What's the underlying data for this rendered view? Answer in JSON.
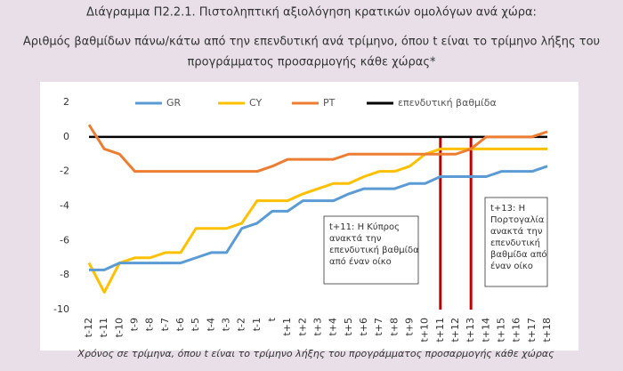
{
  "chart_data": {
    "type": "line",
    "title": "Διάγραμμα Π2.2.1. Πιστοληπτική αξιολόγηση κρατικών ομολόγων ανά χώρα:",
    "subtitle": [
      "Αριθμός βαθμίδων πάνω/κάτω από την επενδυτική ανά τρίμηνο, όπου t είναι το τρίμηνο λήξης του",
      "προγράμματος προσαρμογής κάθε χώρας*"
    ],
    "x_label": "Χρόνος σε τρίμηνα, όπου t είναι το τρίμηνο λήξης του προγράμματος προσαρμογής κάθε χώρας",
    "categories": [
      "t-12",
      "t-11",
      "t-10",
      "t-9",
      "t-8",
      "t-7",
      "t-6",
      "t-5",
      "t-4",
      "t-3",
      "t-2",
      "t-1",
      "t",
      "t+1",
      "t+2",
      "t+3",
      "t+4",
      "t+5",
      "t+6",
      "t+7",
      "t+8",
      "t+9",
      "t+10",
      "t+11",
      "t+12",
      "t+13",
      "t+14",
      "t+15",
      "t+16",
      "t+17",
      "t+18"
    ],
    "series": [
      {
        "name": "GR",
        "color": "#5b9bd5",
        "values": [
          -7.7,
          -7.7,
          -7.3,
          -7.3,
          -7.3,
          -7.3,
          -7.3,
          -7,
          -6.7,
          -6.7,
          -5.3,
          -5,
          -4.3,
          -4.3,
          -3.7,
          -3.7,
          -3.7,
          -3.3,
          -3,
          -3,
          -3,
          -2.7,
          -2.7,
          -2.3,
          -2.3,
          -2.3,
          -2.3,
          -2,
          -2,
          -2,
          -1.7
        ]
      },
      {
        "name": "CY",
        "color": "#ffc000",
        "values": [
          -7.3,
          -9,
          -7.3,
          -7,
          -7,
          -6.7,
          -6.7,
          -5.3,
          -5.3,
          -5.3,
          -5,
          -3.7,
          -3.7,
          -3.7,
          -3.3,
          -3,
          -2.7,
          -2.7,
          -2.3,
          -2,
          -2,
          -1.7,
          -1,
          -0.7,
          -0.7,
          -0.7,
          -0.7,
          -0.7,
          -0.7,
          -0.7,
          -0.7
        ]
      },
      {
        "name": "PT",
        "color": "#ed7d31",
        "values": [
          0.7,
          -0.7,
          -1,
          -2,
          -2,
          -2,
          -2,
          -2,
          -2,
          -2,
          -2,
          -2,
          -1.7,
          -1.3,
          -1.3,
          -1.3,
          -1.3,
          -1,
          -1,
          -1,
          -1,
          -1,
          -1,
          -1,
          -1,
          -0.7,
          0,
          0,
          0,
          0,
          0.3
        ]
      },
      {
        "name": "επενδυτική βαθμίδα",
        "color": "#000000",
        "values": [
          0,
          0,
          0,
          0,
          0,
          0,
          0,
          0,
          0,
          0,
          0,
          0,
          0,
          0,
          0,
          0,
          0,
          0,
          0,
          0,
          0,
          0,
          0,
          0,
          0,
          0,
          0,
          0,
          0,
          0,
          0
        ]
      }
    ],
    "ylim": [
      -10,
      2
    ],
    "yticks": [
      2,
      0,
      -2,
      -4,
      -6,
      -8,
      -10
    ],
    "grid": false,
    "legend": "top",
    "annotations": [
      {
        "x": "t+11",
        "color": "#c00000",
        "lines": [
          "t+11: Η Κύπρος",
          "ανακτά την",
          "επενδυτική βαθμίδα",
          "από έναν οίκο"
        ]
      },
      {
        "x": "t+13",
        "color": "#c00000",
        "lines": [
          "t+13: Η",
          "Πορτογαλία",
          "ανακτά την",
          "επενδυτική",
          "βαθμίδα από",
          "έναν οίκο"
        ]
      }
    ]
  }
}
